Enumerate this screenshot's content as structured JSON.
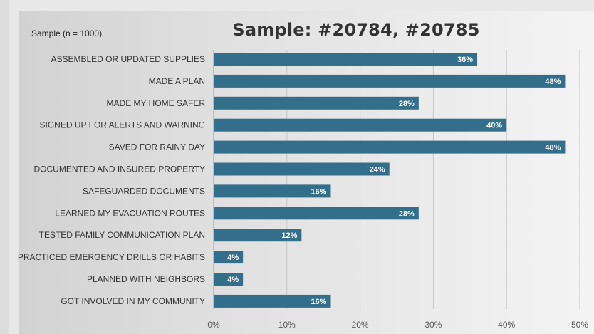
{
  "chart_data": {
    "type": "bar",
    "orientation": "horizontal",
    "title": "Sample: #20784, #20785",
    "subtitle": "Sample (n = 1000)",
    "categories": [
      "ASSEMBLED OR UPDATED SUPPLIES",
      "MADE A PLAN",
      "MADE MY HOME SAFER",
      "SIGNED UP FOR ALERTS AND WARNING",
      "SAVED FOR  RAINY DAY",
      "DOCUMENTED AND INSURED PROPERTY",
      "SAFEGUARDED DOCUMENTS",
      "LEARNED MY EVACUATION ROUTES",
      "TESTED FAMILY COMMUNICATION PLAN",
      "PRACTICED EMERGENCY DRILLS OR HABITS",
      "PLANNED WITH NEIGHBORS",
      "GOT INVOLVED IN MY COMMUNITY"
    ],
    "values": [
      36,
      48,
      28,
      40,
      48,
      24,
      16,
      28,
      12,
      4,
      4,
      16
    ],
    "data_labels": [
      "36%",
      "48%",
      "28%",
      "40%",
      "48%",
      "24%",
      "16%",
      "28%",
      "12%",
      "4%",
      "4%",
      "16%"
    ],
    "xlim": [
      0,
      50
    ],
    "x_ticks": [
      0,
      10,
      20,
      30,
      40,
      50
    ],
    "x_tick_labels": [
      "0%",
      "10%",
      "20%",
      "30%",
      "40%",
      "50%"
    ],
    "xlabel": "",
    "ylabel": "",
    "grid": "vertical",
    "legend": "none",
    "bar_color": "#336e8a",
    "label_color": "#ffffff"
  }
}
